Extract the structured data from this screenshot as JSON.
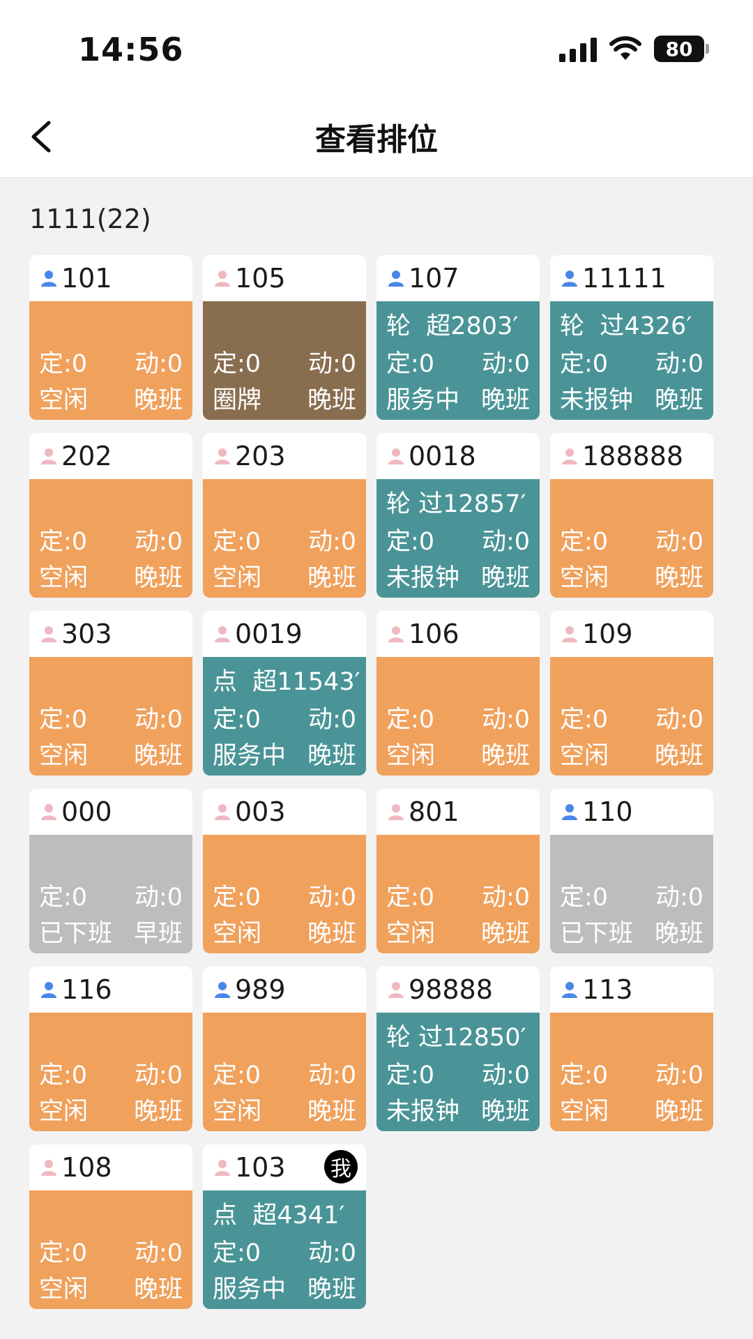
{
  "status_bar": {
    "time": "14:56",
    "battery": "80"
  },
  "header": {
    "title": "查看排位"
  },
  "group_title": "1111(22)",
  "cards": [
    {
      "num": "101",
      "gender": "male",
      "color": "orange",
      "top": "",
      "ding": "定:0",
      "dong": "动:0",
      "state": "空闲",
      "shift": "晚班"
    },
    {
      "num": "105",
      "gender": "female",
      "color": "brown",
      "top": "",
      "ding": "定:0",
      "dong": "动:0",
      "state": "圈牌",
      "shift": "晚班"
    },
    {
      "num": "107",
      "gender": "male",
      "color": "teal",
      "top": "轮  超2803′",
      "ding": "定:0",
      "dong": "动:0",
      "state": "服务中",
      "shift": "晚班"
    },
    {
      "num": "11111",
      "gender": "male",
      "color": "teal",
      "top": "轮  过4326′",
      "ding": "定:0",
      "dong": "动:0",
      "state": "未报钟",
      "shift": "晚班"
    },
    {
      "num": "202",
      "gender": "female",
      "color": "orange",
      "top": "",
      "ding": "定:0",
      "dong": "动:0",
      "state": "空闲",
      "shift": "晚班"
    },
    {
      "num": "203",
      "gender": "female",
      "color": "orange",
      "top": "",
      "ding": "定:0",
      "dong": "动:0",
      "state": "空闲",
      "shift": "晚班"
    },
    {
      "num": "0018",
      "gender": "female",
      "color": "teal",
      "top": "轮 过12857′",
      "ding": "定:0",
      "dong": "动:0",
      "state": "未报钟",
      "shift": "晚班"
    },
    {
      "num": "188888",
      "gender": "female",
      "color": "orange",
      "top": "",
      "ding": "定:0",
      "dong": "动:0",
      "state": "空闲",
      "shift": "晚班"
    },
    {
      "num": "303",
      "gender": "female",
      "color": "orange",
      "top": "",
      "ding": "定:0",
      "dong": "动:0",
      "state": "空闲",
      "shift": "晚班"
    },
    {
      "num": "0019",
      "gender": "female",
      "color": "teal",
      "top": "点  超11543′",
      "ding": "定:0",
      "dong": "动:0",
      "state": "服务中",
      "shift": "晚班"
    },
    {
      "num": "106",
      "gender": "female",
      "color": "orange",
      "top": "",
      "ding": "定:0",
      "dong": "动:0",
      "state": "空闲",
      "shift": "晚班"
    },
    {
      "num": "109",
      "gender": "female",
      "color": "orange",
      "top": "",
      "ding": "定:0",
      "dong": "动:0",
      "state": "空闲",
      "shift": "晚班"
    },
    {
      "num": "000",
      "gender": "female",
      "color": "gray",
      "top": "",
      "ding": "定:0",
      "dong": "动:0",
      "state": "已下班",
      "shift": "早班"
    },
    {
      "num": "003",
      "gender": "female",
      "color": "orange",
      "top": "",
      "ding": "定:0",
      "dong": "动:0",
      "state": "空闲",
      "shift": "晚班"
    },
    {
      "num": "801",
      "gender": "female",
      "color": "orange",
      "top": "",
      "ding": "定:0",
      "dong": "动:0",
      "state": "空闲",
      "shift": "晚班"
    },
    {
      "num": "110",
      "gender": "male",
      "color": "gray",
      "top": "",
      "ding": "定:0",
      "dong": "动:0",
      "state": "已下班",
      "shift": "晚班"
    },
    {
      "num": "116",
      "gender": "male",
      "color": "orange",
      "top": "",
      "ding": "定:0",
      "dong": "动:0",
      "state": "空闲",
      "shift": "晚班"
    },
    {
      "num": "989",
      "gender": "male",
      "color": "orange",
      "top": "",
      "ding": "定:0",
      "dong": "动:0",
      "state": "空闲",
      "shift": "晚班"
    },
    {
      "num": "98888",
      "gender": "female",
      "color": "teal",
      "top": "轮 过12850′",
      "ding": "定:0",
      "dong": "动:0",
      "state": "未报钟",
      "shift": "晚班"
    },
    {
      "num": "113",
      "gender": "male",
      "color": "orange",
      "top": "",
      "ding": "定:0",
      "dong": "动:0",
      "state": "空闲",
      "shift": "晚班"
    },
    {
      "num": "108",
      "gender": "female",
      "color": "orange",
      "top": "",
      "ding": "定:0",
      "dong": "动:0",
      "state": "空闲",
      "shift": "晚班"
    },
    {
      "num": "103",
      "gender": "female",
      "color": "teal",
      "top": "点  超4341′",
      "ding": "定:0",
      "dong": "动:0",
      "state": "服务中",
      "shift": "晚班",
      "me_badge": "我"
    }
  ],
  "colors": {
    "orange": "#f0a15c",
    "teal": "#4a9497",
    "brown": "#896d4f",
    "gray": "#bdbdbd",
    "male_icon": "#4a86e8",
    "female_icon": "#f0b8c0"
  },
  "icons": {
    "back": "chevron-left-icon",
    "male": "person-icon",
    "female": "person-icon",
    "signal": "signal-icon",
    "wifi": "wifi-icon",
    "battery": "battery-icon"
  }
}
